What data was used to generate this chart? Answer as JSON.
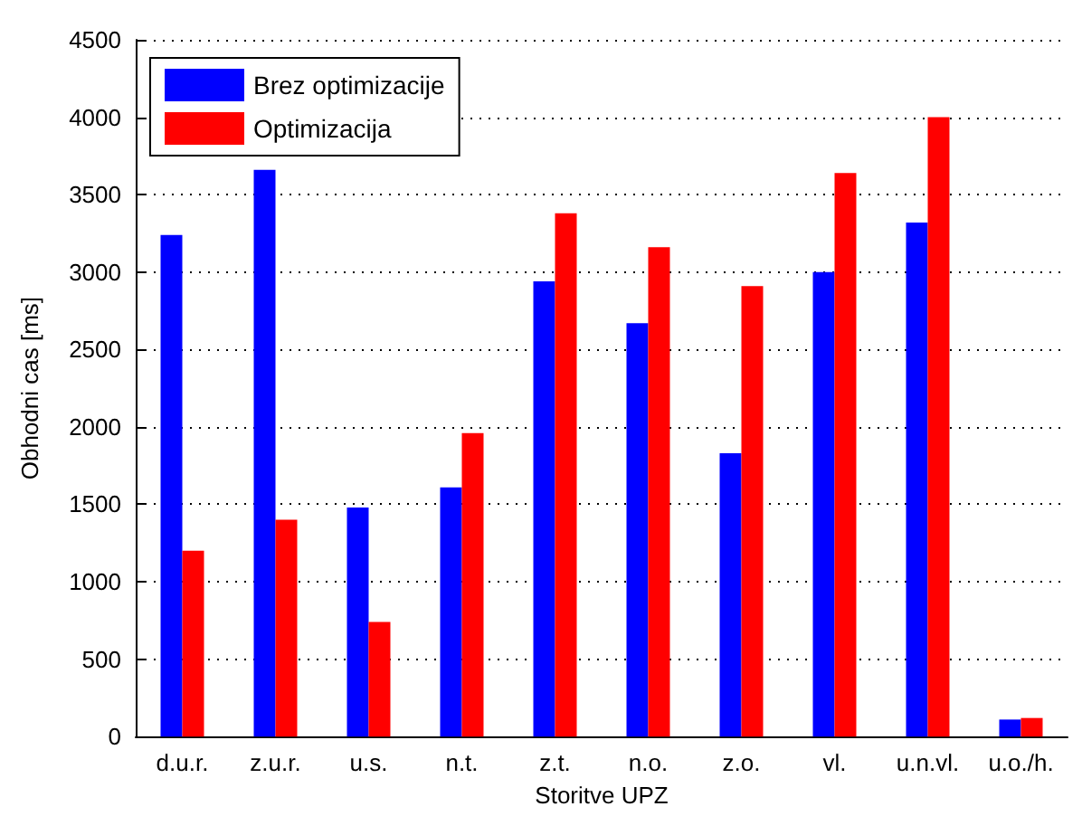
{
  "chart_data": {
    "type": "bar",
    "xlabel": "Storitve UPZ",
    "ylabel": "Obhodni cas [ms]",
    "categories": [
      "d.u.r.",
      "z.u.r.",
      "u.s.",
      "n.t.",
      "z.t.",
      "n.o.",
      "z.o.",
      "vl.",
      "u.n.vl.",
      "u.o./h."
    ],
    "series": [
      {
        "name": "Brez optimizacije",
        "color": "#0000ff",
        "values": [
          3240,
          3660,
          1480,
          1610,
          2940,
          2670,
          1830,
          3000,
          3320,
          110
        ]
      },
      {
        "name": "Optimizacija",
        "color": "#ff0000",
        "values": [
          1200,
          1400,
          740,
          1960,
          3380,
          3160,
          2910,
          3640,
          4000,
          120
        ]
      }
    ],
    "ylim": [
      0,
      4500
    ],
    "yticks": [
      0,
      500,
      1000,
      1500,
      2000,
      2500,
      3000,
      3500,
      4000,
      4500
    ],
    "grid": "y",
    "legend": "top left"
  }
}
